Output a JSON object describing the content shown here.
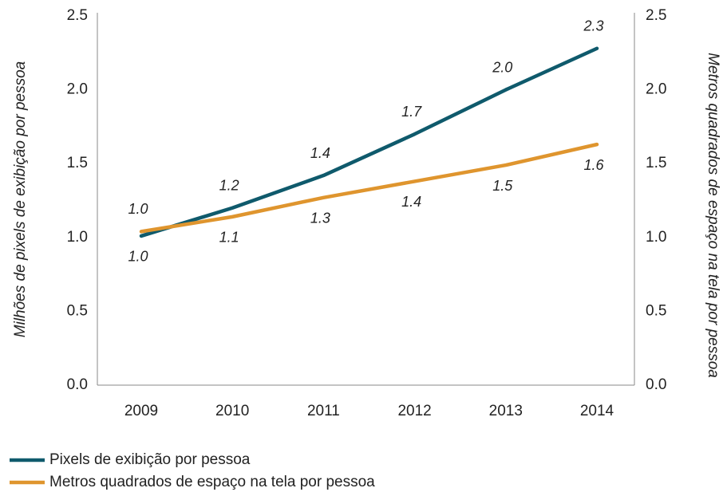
{
  "chart_data": {
    "type": "line",
    "categories": [
      "2009",
      "2010",
      "2011",
      "2012",
      "2013",
      "2014"
    ],
    "ylabel": "Milhões de pixels de exibição por pessoa",
    "y2label": "Metros quadrados de espaço na tela por pessoa",
    "ylim": [
      0,
      2.5
    ],
    "yticks": [
      {
        "value": 0,
        "label": "0.0"
      },
      {
        "value": 0.5,
        "label": "0.5"
      },
      {
        "value": 1,
        "label": "1.0"
      },
      {
        "value": 1.5,
        "label": "1.5"
      },
      {
        "value": 2,
        "label": "2.0"
      },
      {
        "value": 2.5,
        "label": "2.5"
      }
    ],
    "y2lim": [
      0,
      2.5
    ],
    "y2ticks": [
      {
        "value": 0,
        "label": "0.0"
      },
      {
        "value": 0.5,
        "label": "0.5"
      },
      {
        "value": 1,
        "label": "1.0"
      },
      {
        "value": 1.5,
        "label": "1.5"
      },
      {
        "value": 2,
        "label": "2.0"
      },
      {
        "value": 2.5,
        "label": "2.5"
      }
    ],
    "series": [
      {
        "name": "Pixels de exibição por pessoa",
        "color": "#0f5a6c",
        "values": [
          1.01,
          1.2,
          1.42,
          1.7,
          2.0,
          2.28
        ],
        "value_labels": [
          "1.0",
          "1.2",
          "1.4",
          "1.7",
          "2.0",
          "2.3"
        ]
      },
      {
        "name": "Metros quadrados de espaço na tela por pessoa",
        "color": "#df952e",
        "axis": "y2",
        "values": [
          1.04,
          1.14,
          1.27,
          1.38,
          1.49,
          1.63
        ],
        "value_labels": [
          "1.0",
          "1.1",
          "1.3",
          "1.4",
          "1.5",
          "1.6"
        ]
      }
    ],
    "legend": "bottom-left"
  }
}
